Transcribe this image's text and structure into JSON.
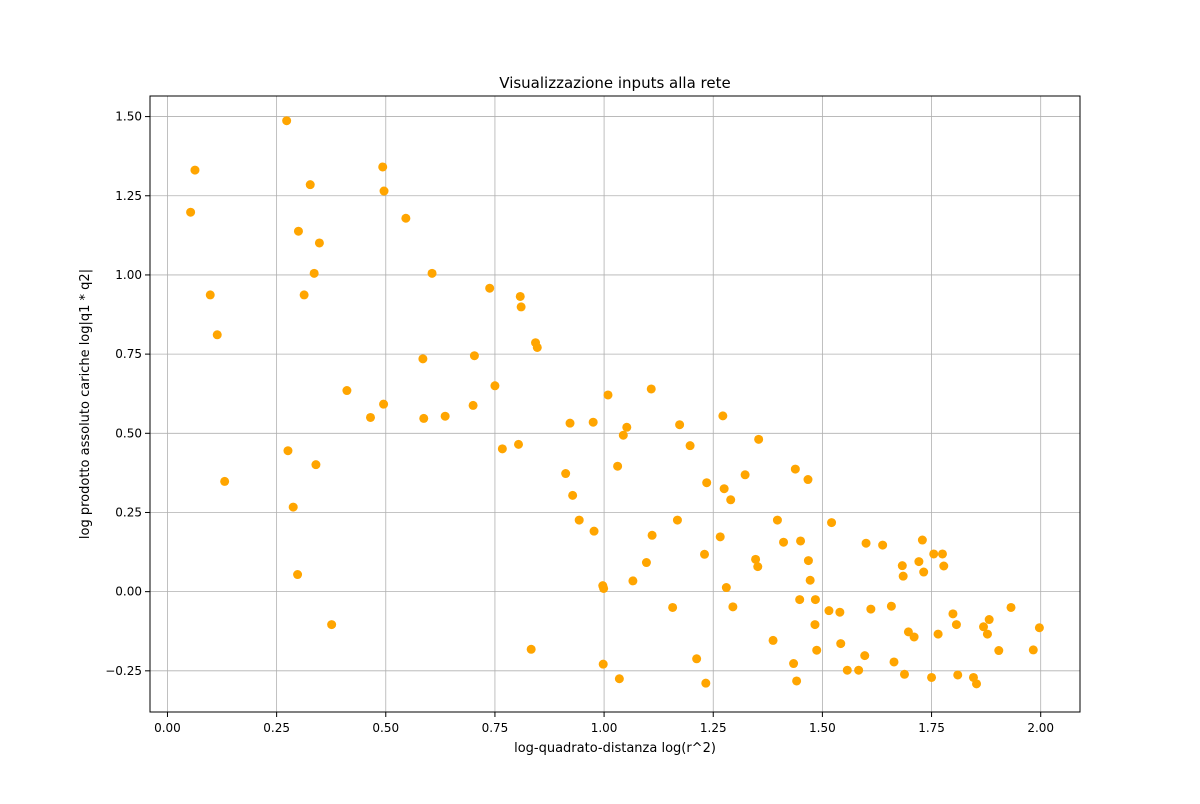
{
  "chart_data": {
    "type": "scatter",
    "title": "Visualizzazione inputs alla rete",
    "xlabel": "log-quadrato-distanza log(r^2)",
    "ylabel": "log prodotto assoluto cariche log|q1 * q2|",
    "xlim": [
      -0.04,
      2.09
    ],
    "ylim": [
      -0.38,
      1.565
    ],
    "xticks": [
      0.0,
      0.25,
      0.5,
      0.75,
      1.0,
      1.25,
      1.5,
      1.75,
      2.0
    ],
    "xtick_labels": [
      "0.00",
      "0.25",
      "0.50",
      "0.75",
      "1.00",
      "1.25",
      "1.50",
      "1.75",
      "2.00"
    ],
    "yticks": [
      -0.25,
      0.0,
      0.25,
      0.5,
      0.75,
      1.0,
      1.25,
      1.5
    ],
    "ytick_labels": [
      "−0.25",
      "0.00",
      "0.25",
      "0.50",
      "0.75",
      "1.00",
      "1.25",
      "1.50"
    ],
    "grid": true,
    "marker_color": "#ffa500",
    "x": [
      0.053,
      0.063,
      0.098,
      0.114,
      0.131,
      0.273,
      0.276,
      0.288,
      0.298,
      0.3,
      0.313,
      0.327,
      0.336,
      0.34,
      0.348,
      0.376,
      0.411,
      0.465,
      0.493,
      0.495,
      0.496,
      0.546,
      0.585,
      0.587,
      0.606,
      0.636,
      0.7,
      0.703,
      0.738,
      0.75,
      0.767,
      0.804,
      0.808,
      0.81,
      0.833,
      0.843,
      0.847,
      0.912,
      0.922,
      0.928,
      0.943,
      0.975,
      0.977,
      0.997,
      0.998,
      0.999,
      1.009,
      1.031,
      1.035,
      1.044,
      1.052,
      1.066,
      1.097,
      1.108,
      1.11,
      1.157,
      1.168,
      1.173,
      1.197,
      1.212,
      1.23,
      1.233,
      1.235,
      1.266,
      1.272,
      1.275,
      1.28,
      1.29,
      1.295,
      1.323,
      1.347,
      1.352,
      1.354,
      1.387,
      1.397,
      1.411,
      1.434,
      1.438,
      1.441,
      1.448,
      1.45,
      1.467,
      1.468,
      1.472,
      1.483,
      1.484,
      1.487,
      1.515,
      1.521,
      1.54,
      1.542,
      1.557,
      1.583,
      1.597,
      1.6,
      1.611,
      1.638,
      1.658,
      1.664,
      1.683,
      1.685,
      1.688,
      1.697,
      1.71,
      1.721,
      1.729,
      1.732,
      1.75,
      1.755,
      1.765,
      1.775,
      1.778,
      1.799,
      1.807,
      1.81,
      1.846,
      1.853,
      1.869,
      1.878,
      1.882,
      1.904,
      1.932,
      1.983,
      1.997
    ],
    "y": [
      1.198,
      1.331,
      0.937,
      0.811,
      0.348,
      1.487,
      0.445,
      0.267,
      0.054,
      1.138,
      0.937,
      1.285,
      1.005,
      0.401,
      1.101,
      -0.104,
      0.635,
      0.55,
      1.341,
      0.592,
      1.265,
      1.179,
      0.735,
      0.547,
      1.005,
      0.554,
      0.588,
      0.745,
      0.958,
      0.65,
      0.451,
      0.465,
      0.932,
      0.899,
      -0.182,
      0.786,
      0.771,
      0.373,
      0.532,
      0.304,
      0.226,
      0.535,
      0.191,
      0.019,
      -0.229,
      0.01,
      0.621,
      0.396,
      -0.275,
      0.494,
      0.519,
      0.034,
      0.092,
      0.64,
      0.178,
      -0.05,
      0.226,
      0.527,
      0.461,
      -0.212,
      0.118,
      -0.289,
      0.344,
      0.173,
      0.555,
      0.325,
      0.013,
      0.29,
      -0.048,
      0.369,
      0.102,
      0.079,
      0.481,
      -0.154,
      0.226,
      0.156,
      -0.227,
      0.387,
      -0.282,
      -0.025,
      0.16,
      0.354,
      0.098,
      0.036,
      -0.104,
      -0.025,
      -0.185,
      -0.06,
      0.218,
      -0.065,
      -0.164,
      -0.248,
      -0.248,
      -0.202,
      0.153,
      -0.055,
      0.147,
      -0.046,
      -0.222,
      0.082,
      0.049,
      -0.261,
      -0.127,
      -0.143,
      0.095,
      0.163,
      0.062,
      -0.271,
      0.119,
      -0.134,
      0.119,
      0.081,
      -0.07,
      -0.104,
      -0.263,
      -0.271,
      -0.291,
      -0.111,
      -0.134,
      -0.088,
      -0.186,
      -0.05,
      -0.184,
      -0.114
    ]
  }
}
